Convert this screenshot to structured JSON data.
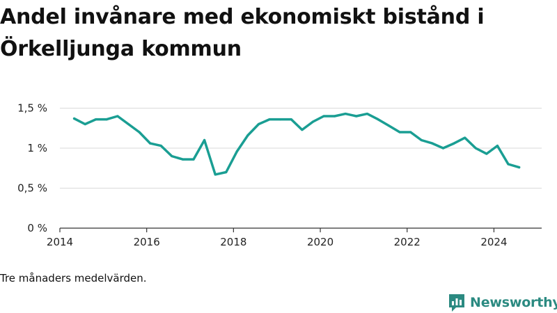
{
  "title": "Andel invånare med ekonomiskt bistånd i Örkelljunga kommun",
  "note": "Tre månaders medelvärden.",
  "brand": {
    "name": "Newsworthy",
    "icon": "newsworthy-logo-icon",
    "color": "#2b8a81"
  },
  "chart_data": {
    "type": "line",
    "title": "Andel invånare med ekonomiskt bistånd i Örkelljunga kommun",
    "xlabel": "",
    "ylabel": "",
    "xlim": [
      2014,
      2025.1
    ],
    "ylim": [
      0,
      1.6
    ],
    "x_ticks": [
      {
        "value": 2014,
        "label": "2014"
      },
      {
        "value": 2016,
        "label": "2016"
      },
      {
        "value": 2018,
        "label": "2018"
      },
      {
        "value": 2020,
        "label": "2020"
      },
      {
        "value": 2022,
        "label": "2022"
      },
      {
        "value": 2024,
        "label": "2024"
      }
    ],
    "y_ticks": [
      {
        "value": 0,
        "label": "0 %"
      },
      {
        "value": 0.5,
        "label": "0,5 %"
      },
      {
        "value": 1,
        "label": "1 %"
      },
      {
        "value": 1.5,
        "label": "1,5 %"
      }
    ],
    "grid": "horizontal",
    "line_color": "#1a9e93",
    "series": [
      {
        "x": [
          2014.33,
          2014.58,
          2014.83,
          2015.08,
          2015.33,
          2015.58,
          2015.83,
          2016.08,
          2016.33,
          2016.58,
          2016.83,
          2017.08,
          2017.33,
          2017.58,
          2017.83,
          2018.08,
          2018.33,
          2018.58,
          2018.83,
          2019.08,
          2019.33,
          2019.58,
          2019.83,
          2020.08,
          2020.33,
          2020.58,
          2020.83,
          2021.08,
          2021.33,
          2021.58,
          2021.83,
          2022.08,
          2022.33,
          2022.58,
          2022.83,
          2023.08,
          2023.33,
          2023.58,
          2023.83,
          2024.08,
          2024.33,
          2024.58
        ],
        "values": [
          1.37,
          1.3,
          1.36,
          1.36,
          1.4,
          1.3,
          1.2,
          1.06,
          1.03,
          0.9,
          0.86,
          0.86,
          1.1,
          0.67,
          0.7,
          0.96,
          1.16,
          1.3,
          1.36,
          1.36,
          1.36,
          1.23,
          1.33,
          1.4,
          1.4,
          1.43,
          1.4,
          1.43,
          1.36,
          1.28,
          1.2,
          1.2,
          1.1,
          1.06,
          1.0,
          1.06,
          1.13,
          1.0,
          0.93,
          1.03,
          0.8,
          0.76
        ]
      }
    ]
  }
}
